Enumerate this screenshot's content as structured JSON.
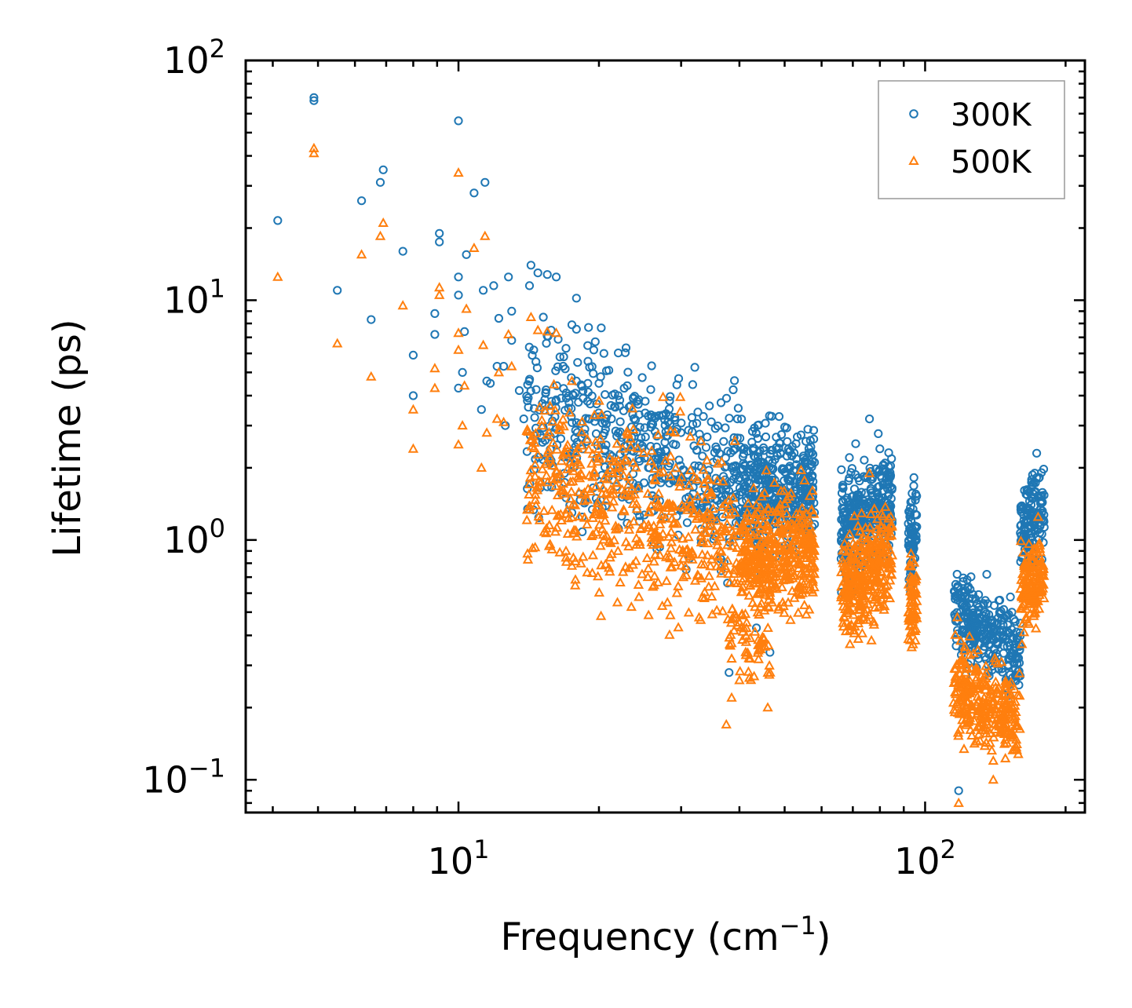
{
  "chart_data": {
    "type": "scatter",
    "title": "",
    "xlabel": "Frequency (cm⁻¹)",
    "xlabel_main": "Frequency (cm",
    "xlabel_sup": "−1",
    "xlabel_close": ")",
    "ylabel": "Lifetime (ps)",
    "xscale": "log",
    "yscale": "log",
    "xlim": [
      3.5,
      220
    ],
    "ylim": [
      0.073,
      100
    ],
    "x_ticks": [
      {
        "value": 10,
        "base": "10",
        "exp": "1"
      },
      {
        "value": 100,
        "base": "10",
        "exp": "2"
      }
    ],
    "y_ticks": [
      {
        "value": 0.1,
        "base": "10",
        "exp": "−1"
      },
      {
        "value": 1,
        "base": "10",
        "exp": "0"
      },
      {
        "value": 10,
        "base": "10",
        "exp": "1"
      },
      {
        "value": 100,
        "base": "10",
        "exp": "2"
      }
    ],
    "legend_position": "top-right",
    "colors": {
      "s300": "#1f77b4",
      "s500": "#ff7f0e"
    },
    "series": [
      {
        "name": "300K",
        "marker": "circle",
        "color": "#1f77b4",
        "points": [
          [
            4.1,
            21.5
          ],
          [
            4.9,
            68
          ],
          [
            4.9,
            70
          ],
          [
            5.5,
            11
          ],
          [
            6.2,
            26
          ],
          [
            6.5,
            8.3
          ],
          [
            6.8,
            31
          ],
          [
            6.9,
            35
          ],
          [
            7.6,
            16
          ],
          [
            8.0,
            5.9
          ],
          [
            8.0,
            4.0
          ],
          [
            8.9,
            8.8
          ],
          [
            8.9,
            7.2
          ],
          [
            9.1,
            17.5
          ],
          [
            9.1,
            19
          ],
          [
            10.0,
            56
          ],
          [
            10.0,
            12.5
          ],
          [
            10.0,
            10.5
          ],
          [
            10.0,
            4.3
          ],
          [
            10.2,
            5.0
          ],
          [
            10.3,
            7.4
          ],
          [
            10.4,
            15.5
          ],
          [
            10.8,
            28
          ],
          [
            11.2,
            3.5
          ],
          [
            11.3,
            11
          ],
          [
            11.4,
            31
          ],
          [
            11.5,
            4.6
          ],
          [
            11.7,
            4.5
          ],
          [
            11.9,
            11.5
          ],
          [
            12.1,
            5.3
          ],
          [
            12.2,
            8.4
          ],
          [
            12.5,
            5.3
          ],
          [
            12.6,
            3.0
          ],
          [
            12.8,
            12.5
          ],
          [
            13.0,
            9.0
          ],
          [
            13.0,
            6.8
          ],
          [
            13.5,
            4.2
          ],
          [
            13.8,
            3.2
          ],
          [
            14.2,
            11.5
          ],
          [
            14.3,
            14.0
          ],
          [
            14.5,
            6.2
          ],
          [
            14.8,
            13.0
          ],
          [
            15.2,
            8.5
          ],
          [
            15.5,
            12.8
          ],
          [
            15.8,
            7.5
          ],
          [
            16.2,
            12.5
          ],
          [
            16.5,
            5.8
          ],
          [
            17.0,
            6.3
          ],
          [
            17.5,
            7.9
          ],
          [
            17.9,
            10.2
          ],
          [
            18.0,
            5.5
          ],
          [
            18.5,
            3.9
          ],
          [
            19.0,
            7.7
          ],
          [
            19.5,
            6.2
          ],
          [
            20.0,
            4.5
          ],
          [
            20.5,
            6.0
          ],
          [
            21.0,
            5.1
          ],
          [
            22.0,
            4.0
          ],
          [
            23.0,
            4.4
          ],
          [
            17.5,
            1.3
          ],
          [
            17.0,
            1.5
          ],
          [
            38.0,
            0.28
          ],
          [
            43.5,
            0.43
          ],
          [
            46.5,
            0.34
          ],
          [
            44.5,
            0.72
          ],
          [
            76.0,
            3.2
          ],
          [
            80.0,
            2.4
          ],
          [
            118,
            0.09
          ],
          [
            150,
            0.36
          ],
          [
            158,
            0.32
          ],
          [
            160,
            0.45
          ]
        ],
        "clusters": [
          {
            "x": [
              14,
              40
            ],
            "y_mid": [
              3.2,
              1.8
            ],
            "spread": 0.32,
            "n": 520
          },
          {
            "x": [
              40,
              58
            ],
            "y_mid": [
              1.6,
              1.7
            ],
            "spread": 0.22,
            "n": 420
          },
          {
            "x": [
              66,
              85
            ],
            "y_mid": [
              1.1,
              1.5
            ],
            "spread": 0.2,
            "n": 320
          },
          {
            "x": [
              92,
              96
            ],
            "y_mid": [
              1.05,
              1.05
            ],
            "spread": 0.18,
            "n": 70
          },
          {
            "x": [
              115,
              160
            ],
            "y_mid": [
              0.5,
              0.33
            ],
            "spread": 0.16,
            "n": 300
          },
          {
            "x": [
              160,
              180
            ],
            "y_mid": [
              1.1,
              1.4
            ],
            "spread": 0.16,
            "n": 150
          }
        ]
      },
      {
        "name": "500K",
        "marker": "triangle",
        "color": "#ff7f0e",
        "points": [
          [
            4.1,
            12.5
          ],
          [
            4.9,
            41
          ],
          [
            4.9,
            43
          ],
          [
            5.5,
            6.6
          ],
          [
            6.2,
            15.5
          ],
          [
            6.5,
            4.8
          ],
          [
            6.8,
            18.5
          ],
          [
            6.9,
            21
          ],
          [
            7.6,
            9.5
          ],
          [
            8.0,
            3.5
          ],
          [
            8.0,
            2.4
          ],
          [
            8.9,
            5.2
          ],
          [
            8.9,
            4.3
          ],
          [
            9.1,
            10.5
          ],
          [
            9.1,
            11.3
          ],
          [
            10.0,
            34
          ],
          [
            10.0,
            7.3
          ],
          [
            10.0,
            6.2
          ],
          [
            10.0,
            2.5
          ],
          [
            10.2,
            3.0
          ],
          [
            10.3,
            4.4
          ],
          [
            10.4,
            9.2
          ],
          [
            10.8,
            16.5
          ],
          [
            11.2,
            2.0
          ],
          [
            11.3,
            6.5
          ],
          [
            11.4,
            18.5
          ],
          [
            11.5,
            2.8
          ],
          [
            12.1,
            3.2
          ],
          [
            12.2,
            5.0
          ],
          [
            12.5,
            3.1
          ],
          [
            12.8,
            7.2
          ],
          [
            13.0,
            5.3
          ],
          [
            14.3,
            8.5
          ],
          [
            14.8,
            7.5
          ],
          [
            15.5,
            7.4
          ],
          [
            16.2,
            7.3
          ],
          [
            17.5,
            4.6
          ],
          [
            17.5,
            0.78
          ],
          [
            17.0,
            0.9
          ],
          [
            18.5,
            0.85
          ],
          [
            37.5,
            0.17
          ],
          [
            38.5,
            0.22
          ],
          [
            40.0,
            0.26
          ],
          [
            43.0,
            0.27
          ],
          [
            46.0,
            0.2
          ],
          [
            76.0,
            1.9
          ],
          [
            118,
            0.08
          ],
          [
            140,
            0.1
          ],
          [
            140,
            0.12
          ]
        ],
        "clusters": [
          {
            "x": [
              14,
              40
            ],
            "y_mid": [
              1.9,
              0.95
            ],
            "spread": 0.34,
            "n": 520
          },
          {
            "x": [
              38,
              47
            ],
            "y_mid": [
              0.45,
              0.35
            ],
            "spread": 0.22,
            "n": 60
          },
          {
            "x": [
              40,
              58
            ],
            "y_mid": [
              0.8,
              0.95
            ],
            "spread": 0.22,
            "n": 420
          },
          {
            "x": [
              66,
              85
            ],
            "y_mid": [
              0.62,
              0.85
            ],
            "spread": 0.2,
            "n": 320
          },
          {
            "x": [
              92,
              96
            ],
            "y_mid": [
              0.55,
              0.55
            ],
            "spread": 0.16,
            "n": 70
          },
          {
            "x": [
              115,
              160
            ],
            "y_mid": [
              0.26,
              0.17
            ],
            "spread": 0.17,
            "n": 300
          },
          {
            "x": [
              160,
              180
            ],
            "y_mid": [
              0.6,
              0.7
            ],
            "spread": 0.16,
            "n": 150
          }
        ]
      }
    ]
  }
}
